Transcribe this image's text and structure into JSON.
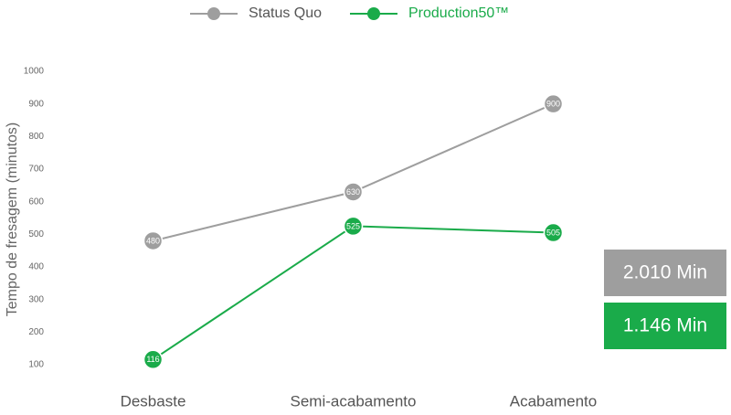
{
  "chart_data": {
    "type": "line",
    "y_label": "Tempo de fresagem (minutos)",
    "categories": [
      "Desbaste",
      "Semi-acabamento",
      "Acabamento"
    ],
    "series": [
      {
        "name": "Status Quo",
        "color": "#9e9e9e",
        "values": [
          480,
          630,
          900
        ]
      },
      {
        "name": "Production50™",
        "color": "#1aab4a",
        "values": [
          116,
          525,
          505
        ]
      }
    ],
    "ylim": [
      100,
      1000
    ],
    "yticks": [
      100,
      200,
      300,
      400,
      500,
      600,
      700,
      800,
      900,
      1000
    ],
    "grid": false,
    "legend": "top",
    "annotations": [
      {
        "text": "2.010 Min",
        "color": "#9e9e9e"
      },
      {
        "text": "1.146 Min",
        "color": "#1aab4a"
      }
    ]
  }
}
